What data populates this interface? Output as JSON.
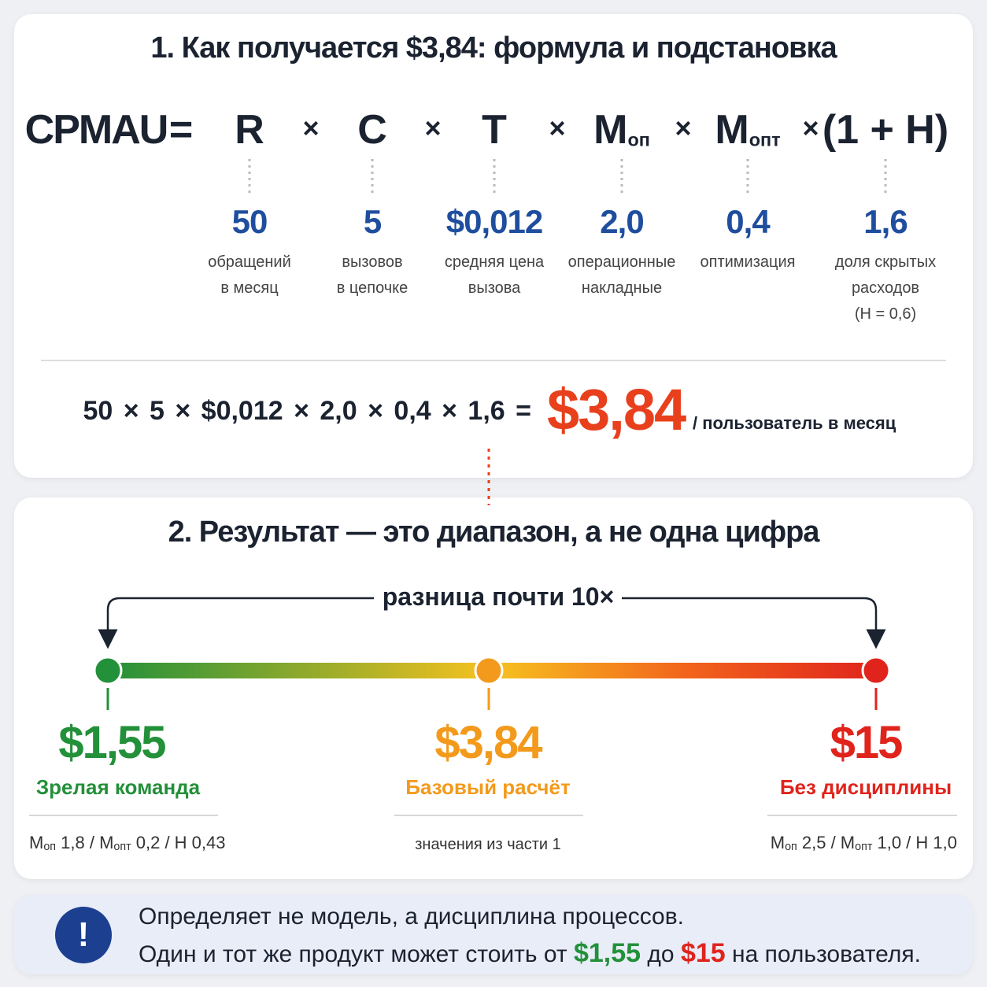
{
  "section1": {
    "title": "1. Как получается $3,84: формула и подстановка",
    "formula": {
      "lhs": "CPMAU",
      "equals": "=",
      "operator": "×",
      "terms": [
        {
          "symbol": "R",
          "value": "50",
          "description": [
            "обращений",
            "в месяц"
          ]
        },
        {
          "symbol": "C",
          "value": "5",
          "description": [
            "вызовов",
            "в цепочке"
          ]
        },
        {
          "symbol": "T",
          "value": "$0,012",
          "description": [
            "средняя цена",
            "вызова"
          ]
        },
        {
          "symbol": "M",
          "subscript": "оп",
          "value": "2,0",
          "description": [
            "операционные",
            "накладные"
          ]
        },
        {
          "symbol": "M",
          "subscript": "опт",
          "value": "0,4",
          "description": [
            "оптимизация"
          ]
        },
        {
          "symbol": "(1 + H)",
          "value": "1,6",
          "description": [
            "доля скрытых",
            "расходов",
            "(H = 0,6)"
          ]
        }
      ]
    },
    "calculation": {
      "expression": "50 × 5 × $0,012 × 2,0 × 0,4 × 1,6 =",
      "result": "$3,84",
      "unit": "/ пользователь в месяц"
    }
  },
  "section2": {
    "title": "2. Результат — это диапазон, а не одна цифра",
    "span_label": "разница почти 10×",
    "points": [
      {
        "value": "$1,55",
        "label": "Зрелая команда",
        "note": [
          {
            "text": "M"
          },
          {
            "sub": "оп"
          },
          {
            "text": " 1,8 / M"
          },
          {
            "sub": "опт"
          },
          {
            "text": " 0,2 / H 0,43"
          }
        ]
      },
      {
        "value": "$3,84",
        "label": "Базовый расчёт",
        "note": [
          {
            "text": "значения из части 1"
          }
        ]
      },
      {
        "value": "$15",
        "label": "Без дисциплины",
        "note": [
          {
            "text": "M"
          },
          {
            "sub": "оп"
          },
          {
            "text": " 2,5 / M"
          },
          {
            "sub": "опт"
          },
          {
            "text": " 1,0 / H 1,0"
          }
        ]
      }
    ]
  },
  "callout": {
    "icon": "!",
    "line1": "Определяет не модель, а дисциплина процессов.",
    "line2": {
      "before": "Один и тот же продукт может стоить от ",
      "low": "$1,55",
      "middle": " до ",
      "high": "$15",
      "after": " на пользователя."
    }
  }
}
